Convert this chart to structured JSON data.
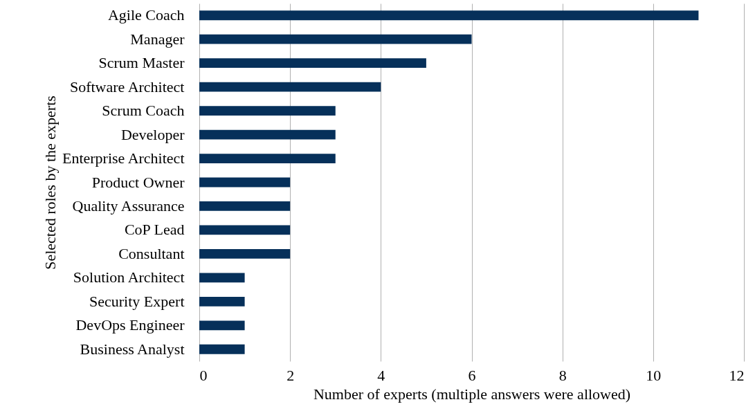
{
  "chart_data": {
    "type": "bar",
    "orientation": "horizontal",
    "xlabel": "Number of experts (multiple answers were allowed)",
    "ylabel": "Selected roles by the experts",
    "categories": [
      "Agile Coach",
      "Manager",
      "Scrum Master",
      "Software Architect",
      "Scrum Coach",
      "Developer",
      "Enterprise Architect",
      "Product Owner",
      "Quality Assurance",
      "CoP Lead",
      "Consultant",
      "Solution Architect",
      "Security Expert",
      "DevOps Engineer",
      "Business Analyst"
    ],
    "values": [
      11,
      6,
      5,
      4,
      3,
      3,
      3,
      2,
      2,
      2,
      2,
      1,
      1,
      1,
      1
    ],
    "color": "#06305a",
    "xlim": [
      0,
      12
    ],
    "xticks": [
      0,
      2,
      4,
      6,
      8,
      10,
      12
    ],
    "grid": "x"
  }
}
